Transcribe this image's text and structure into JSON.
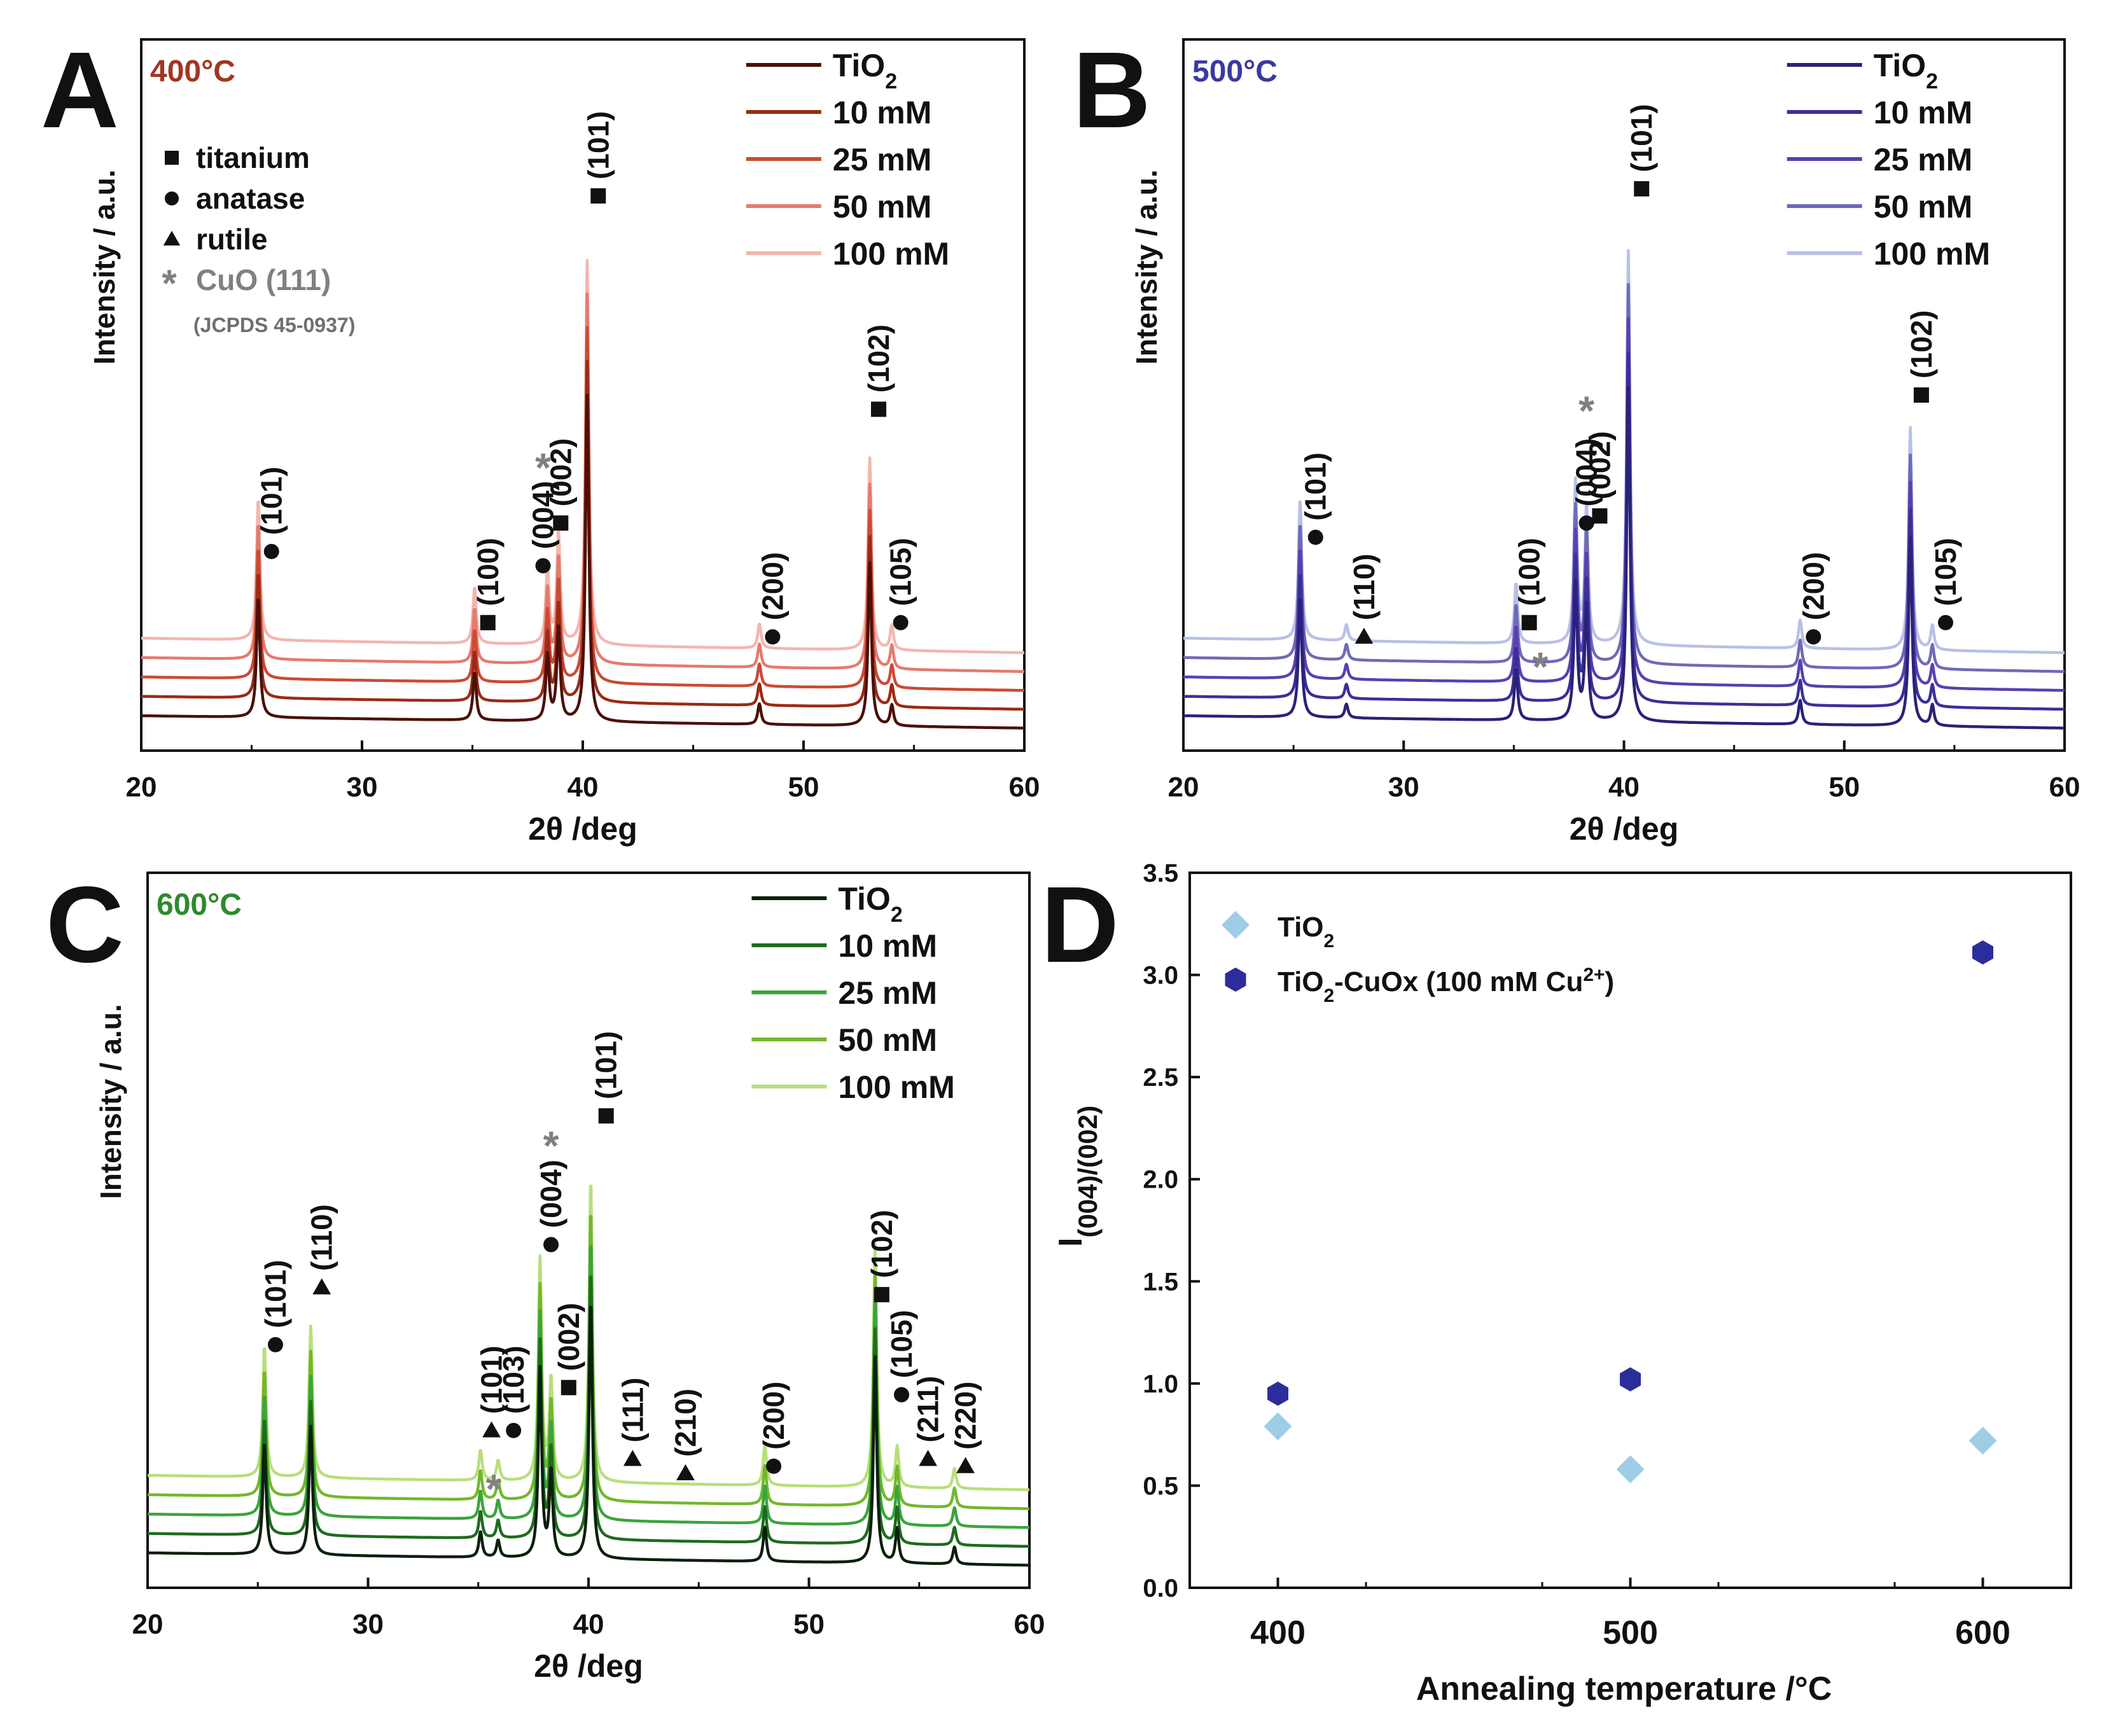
{
  "chart_data": [
    {
      "panel_label": "A",
      "type": "line",
      "title": "400°C",
      "title_color": "#a33520",
      "xlabel": "2θ /deg",
      "ylabel": "Intensity / a.u.",
      "xlim": [
        20,
        60
      ],
      "xticks": [
        "20",
        "30",
        "40",
        "50",
        "60"
      ],
      "legend_position": "top-right",
      "series": [
        {
          "name": "TiO2",
          "display": [
            "TiO",
            "2",
            ""
          ],
          "color": "#4a1008"
        },
        {
          "name": "10 mM",
          "display": [
            "10 mM",
            "",
            ""
          ],
          "color": "#9c2a14"
        },
        {
          "name": "25 mM",
          "display": [
            "25 mM",
            "",
            ""
          ],
          "color": "#cc4a33"
        },
        {
          "name": "50 mM",
          "display": [
            "50 mM",
            "",
            ""
          ],
          "color": "#e47a6e"
        },
        {
          "name": "100 mM",
          "display": [
            "100 mM",
            "",
            ""
          ],
          "color": "#f3b6b0"
        }
      ],
      "peaks": [
        {
          "x": 25.3,
          "h": 70
        },
        {
          "x": 35.1,
          "h": 28
        },
        {
          "x": 38.4,
          "h": 38
        },
        {
          "x": 38.9,
          "h": 55
        },
        {
          "x": 40.2,
          "h": 190
        },
        {
          "x": 48.0,
          "h": 12
        },
        {
          "x": 53.0,
          "h": 95
        },
        {
          "x": 54.0,
          "h": 12
        }
      ],
      "phase_legend": [
        {
          "marker": "■",
          "label": "titanium"
        },
        {
          "marker": "●",
          "label": "anatase"
        },
        {
          "marker": "▲",
          "label": "rutile"
        },
        {
          "marker": "*",
          "label": "CuO (111)"
        }
      ],
      "reference": "(JCPDS 45-0937)",
      "annotations": [
        {
          "x": 25.9,
          "marker": "●",
          "label": "(101)",
          "level": 0.28
        },
        {
          "x": 35.7,
          "marker": "■",
          "label": "(100)",
          "level": 0.18
        },
        {
          "x": 38.2,
          "marker": "●",
          "label": "(004)",
          "level": 0.26
        },
        {
          "x": 38.2,
          "marker": "*",
          "label": "",
          "level": 0.4
        },
        {
          "x": 39.0,
          "marker": "■",
          "label": "(002)",
          "level": 0.32
        },
        {
          "x": 40.7,
          "marker": "■",
          "label": "(101)",
          "level": 0.78
        },
        {
          "x": 48.6,
          "marker": "●",
          "label": "(200)",
          "level": 0.16
        },
        {
          "x": 53.4,
          "marker": "■",
          "label": "(102)",
          "level": 0.48
        },
        {
          "x": 54.4,
          "marker": "●",
          "label": "(105)",
          "level": 0.18
        }
      ]
    },
    {
      "panel_label": "B",
      "type": "line",
      "title": "500°C",
      "title_color": "#3a3aa0",
      "xlabel": "2θ /deg",
      "ylabel": "Intensity / a.u.",
      "xlim": [
        20,
        60
      ],
      "xticks": [
        "20",
        "30",
        "40",
        "50",
        "60"
      ],
      "legend_position": "top-right",
      "series": [
        {
          "name": "TiO2",
          "display": [
            "TiO",
            "2",
            ""
          ],
          "color": "#2a2278"
        },
        {
          "name": "10 mM",
          "display": [
            "10 mM",
            "",
            ""
          ],
          "color": "#3b2f9a"
        },
        {
          "name": "25 mM",
          "display": [
            "25 mM",
            "",
            ""
          ],
          "color": "#5a3fb2"
        },
        {
          "name": "50 mM",
          "display": [
            "50 mM",
            "",
            ""
          ],
          "color": "#6e6ab8"
        },
        {
          "name": "100 mM",
          "display": [
            "100 mM",
            "",
            ""
          ],
          "color": "#b8c0e6"
        }
      ],
      "peaks": [
        {
          "x": 25.3,
          "h": 70
        },
        {
          "x": 27.4,
          "h": 8
        },
        {
          "x": 35.1,
          "h": 30
        },
        {
          "x": 37.8,
          "h": 80
        },
        {
          "x": 38.3,
          "h": 68
        },
        {
          "x": 40.2,
          "h": 195
        },
        {
          "x": 48.0,
          "h": 14
        },
        {
          "x": 53.0,
          "h": 110
        },
        {
          "x": 54.0,
          "h": 12
        }
      ],
      "phase_legend": [],
      "reference": "",
      "annotations": [
        {
          "x": 26.0,
          "marker": "●",
          "label": "(101)",
          "level": 0.3
        },
        {
          "x": 28.2,
          "marker": "▲",
          "label": "(110)",
          "level": 0.16
        },
        {
          "x": 35.7,
          "marker": "■",
          "label": "(100)",
          "level": 0.18
        },
        {
          "x": 36.2,
          "marker": "*",
          "label": "",
          "level": 0.12
        },
        {
          "x": 38.3,
          "marker": "●",
          "label": "(004)",
          "level": 0.32
        },
        {
          "x": 38.3,
          "marker": "*",
          "label": "",
          "level": 0.48
        },
        {
          "x": 38.9,
          "marker": "■",
          "label": "(002)",
          "level": 0.33
        },
        {
          "x": 40.8,
          "marker": "■",
          "label": "(101)",
          "level": 0.79
        },
        {
          "x": 48.6,
          "marker": "●",
          "label": "(200)",
          "level": 0.16
        },
        {
          "x": 53.5,
          "marker": "■",
          "label": "(102)",
          "level": 0.5
        },
        {
          "x": 54.6,
          "marker": "●",
          "label": "(105)",
          "level": 0.18
        }
      ]
    },
    {
      "panel_label": "C",
      "type": "line",
      "title": "600°C",
      "title_color": "#2e8a2e",
      "xlabel": "2θ /deg",
      "ylabel": "Intensity / a.u.",
      "xlim": [
        20,
        60
      ],
      "xticks": [
        "20",
        "30",
        "40",
        "50",
        "60"
      ],
      "legend_position": "top-right",
      "series": [
        {
          "name": "TiO2",
          "display": [
            "TiO",
            "2",
            ""
          ],
          "color": "#0c1f0c"
        },
        {
          "name": "10 mM",
          "display": [
            "10 mM",
            "",
            ""
          ],
          "color": "#1e6b1e"
        },
        {
          "name": "25 mM",
          "display": [
            "25 mM",
            "",
            ""
          ],
          "color": "#3aa53a"
        },
        {
          "name": "50 mM",
          "display": [
            "50 mM",
            "",
            ""
          ],
          "color": "#72b82a"
        },
        {
          "name": "100 mM",
          "display": [
            "100 mM",
            "",
            ""
          ],
          "color": "#b8df7a"
        }
      ],
      "peaks": [
        {
          "x": 25.3,
          "h": 65
        },
        {
          "x": 27.4,
          "h": 75
        },
        {
          "x": 35.1,
          "h": 15
        },
        {
          "x": 35.9,
          "h": 10
        },
        {
          "x": 37.8,
          "h": 110
        },
        {
          "x": 38.3,
          "h": 50
        },
        {
          "x": 40.1,
          "h": 150
        },
        {
          "x": 48.0,
          "h": 20
        },
        {
          "x": 53.0,
          "h": 120
        },
        {
          "x": 54.0,
          "h": 20
        },
        {
          "x": 56.6,
          "h": 10
        }
      ],
      "phase_legend": [],
      "reference": "",
      "annotations": [
        {
          "x": 25.8,
          "marker": "●",
          "label": "(101)",
          "level": 0.34
        },
        {
          "x": 27.9,
          "marker": "▲",
          "label": "(110)",
          "level": 0.42
        },
        {
          "x": 35.6,
          "marker": "▲",
          "label": "(101)",
          "level": 0.22
        },
        {
          "x": 35.7,
          "marker": "*",
          "label": "",
          "level": 0.14
        },
        {
          "x": 36.6,
          "marker": "●",
          "label": "(103)",
          "level": 0.22
        },
        {
          "x": 38.3,
          "marker": "●",
          "label": "(004)",
          "level": 0.48
        },
        {
          "x": 38.3,
          "marker": "*",
          "label": "",
          "level": 0.62
        },
        {
          "x": 39.1,
          "marker": "■",
          "label": "(002)",
          "level": 0.28
        },
        {
          "x": 40.8,
          "marker": "■",
          "label": "(101)",
          "level": 0.66
        },
        {
          "x": 42.0,
          "marker": "▲",
          "label": "(111)",
          "level": 0.18
        },
        {
          "x": 44.4,
          "marker": "▲",
          "label": "(210)",
          "level": 0.16
        },
        {
          "x": 48.4,
          "marker": "●",
          "label": "(200)",
          "level": 0.17
        },
        {
          "x": 53.3,
          "marker": "■",
          "label": "(102)",
          "level": 0.41
        },
        {
          "x": 54.2,
          "marker": "●",
          "label": "(105)",
          "level": 0.27
        },
        {
          "x": 55.4,
          "marker": "▲",
          "label": "(211)",
          "level": 0.18
        },
        {
          "x": 57.1,
          "marker": "▲",
          "label": "(220)",
          "level": 0.17
        }
      ]
    },
    {
      "panel_label": "D",
      "type": "scatter",
      "title": "",
      "xlabel": "Annealing temperature /°C",
      "ylabel": [
        "I",
        "(004)/(002)"
      ],
      "xlim": [
        375,
        625
      ],
      "ylim": [
        0,
        3.5
      ],
      "xticks": [
        "400",
        "500",
        "600"
      ],
      "yticks": [
        "0.0",
        "0.5",
        "1.0",
        "1.5",
        "2.0",
        "2.5",
        "3.0",
        "3.5"
      ],
      "legend_position": "top-left",
      "series": [
        {
          "name": "TiO2",
          "display": [
            "TiO",
            "2",
            ""
          ],
          "marker": "diamond",
          "color": "#9fcde6",
          "x": [
            400,
            500,
            600
          ],
          "y": [
            0.79,
            0.58,
            0.72
          ]
        },
        {
          "name": "TiO2-CuOx (100 mM Cu2+)",
          "display": [
            "TiO",
            "2",
            "-CuOx (100 mM Cu",
            "2+",
            ")"
          ],
          "marker": "hexagon",
          "color": "#2b2e9a",
          "x": [
            400,
            500,
            600
          ],
          "y": [
            0.95,
            1.02,
            3.11
          ]
        }
      ]
    }
  ]
}
